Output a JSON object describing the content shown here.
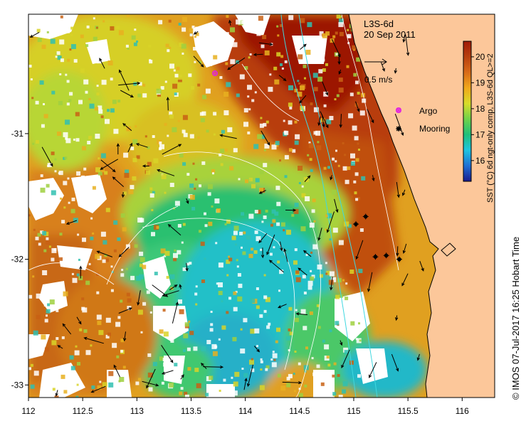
{
  "product_title": "L3S-6d",
  "date": "20 Sep 2011",
  "velocity_scale_label": "0.5 m/s",
  "legend": {
    "argo_label": "Argo",
    "argo_color": "#e020e0",
    "mooring_label": "Mooring",
    "mooring_color": "#000000"
  },
  "colorbar": {
    "label": "SST (°C) 6d ngt-only comp, L3S-6d QL>=2",
    "ticks": [
      "16",
      "17",
      "18",
      "19",
      "20"
    ],
    "range": [
      15.2,
      20.6
    ],
    "colors": [
      "#1a1a8c",
      "#1e6fd4",
      "#1fc4e0",
      "#1fbf7a",
      "#6fd24a",
      "#d8dc2a",
      "#f0a81a",
      "#d86a18",
      "#b8400e",
      "#a01a08"
    ]
  },
  "axes": {
    "x_ticks": [
      "112",
      "112.5",
      "113",
      "113.5",
      "114",
      "114.5",
      "115",
      "115.5",
      "116"
    ],
    "y_ticks": [
      "-31",
      "-32",
      "-33"
    ],
    "lon_range": [
      112,
      116.3
    ],
    "lat_range": [
      -30.05,
      -33.1
    ]
  },
  "credit": "© IMOS 07-Jul-2017 16:25 Hobart Time",
  "land_color": "#fcc79a",
  "missing_data_color": "#ffffff",
  "map_markers": {
    "argo": [
      {
        "lon": 113.72,
        "lat": -30.52
      }
    ],
    "moorings": [
      {
        "lon": 115.02,
        "lat": -31.72
      },
      {
        "lon": 115.11,
        "lat": -31.66
      },
      {
        "lon": 115.2,
        "lat": -31.98
      },
      {
        "lon": 115.3,
        "lat": -31.97
      },
      {
        "lon": 115.42,
        "lat": -32.0
      }
    ]
  }
}
